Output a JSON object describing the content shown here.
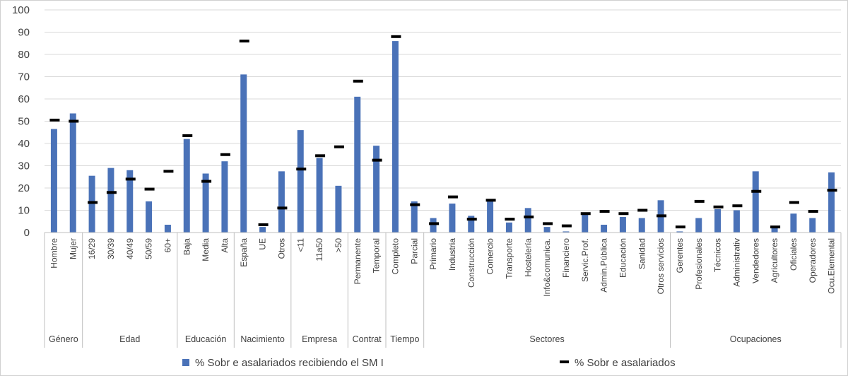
{
  "chart_data": {
    "type": "bar",
    "ylim": [
      0,
      100
    ],
    "yticks": [
      0,
      10,
      20,
      30,
      40,
      50,
      60,
      70,
      80,
      90,
      100
    ],
    "grid": true,
    "legend_position": "bottom",
    "colors": {
      "bar": "#4a72b8",
      "marker": "#000000",
      "grid": "#d9d9d9",
      "axis": "#bfbfbf"
    },
    "categories": [
      "Hombre",
      "Mujer",
      "16/29",
      "30/39",
      "40/49",
      "50/59",
      "60+",
      "Baja",
      "Media",
      "Alta",
      "España",
      "UE",
      "Otros",
      "<11",
      "11a50",
      ">50",
      "Permanente",
      "Temporal",
      "Completo",
      "Parcial",
      "Primario",
      "Industria",
      "Construcción",
      "Comercio",
      "Transporte",
      "Hostelería",
      "Info&comunica.",
      "Financiero",
      "Servic.Prof.",
      "Admin.Pública",
      "Educación",
      "Sanidad",
      "Otros servicios",
      "Gerentes",
      "Profesionales",
      "Técnicos",
      "Administrativ",
      "Vendedores",
      "Agricultores",
      "Oficiales",
      "Operadores",
      "Ocu.Elemental"
    ],
    "groups": [
      {
        "label": "Género",
        "count": 2
      },
      {
        "label": "Edad",
        "count": 5
      },
      {
        "label": "Educación",
        "count": 3
      },
      {
        "label": "Nacimiento",
        "count": 3
      },
      {
        "label": "Empresa",
        "count": 3
      },
      {
        "label": "Contrat",
        "count": 2
      },
      {
        "label": "Tiempo",
        "count": 2
      },
      {
        "label": "Sectores",
        "count": 13
      },
      {
        "label": "Ocupaciones",
        "count": 9
      }
    ],
    "series": [
      {
        "name": "% Sobr e asalariados recibiendo el SM I",
        "type": "bar",
        "values": [
          46.5,
          53.5,
          25.5,
          29,
          28,
          14,
          3.5,
          42,
          26.5,
          32,
          71,
          2.5,
          27.5,
          46,
          33.5,
          21,
          61,
          39,
          86,
          14,
          6.5,
          13,
          7.5,
          14.5,
          4.5,
          11,
          2.5,
          0.5,
          9,
          3.5,
          7,
          6.5,
          14.5,
          0.5,
          6.5,
          10.5,
          10,
          27.5,
          2,
          8.5,
          6.5,
          27
        ]
      },
      {
        "name": "% Sobr e asalariados",
        "type": "marker",
        "values": [
          50.5,
          50,
          13.5,
          18,
          24,
          19.5,
          27.5,
          43.5,
          23,
          35,
          86,
          3.5,
          11,
          28.5,
          34.5,
          38.5,
          68,
          32.5,
          88,
          12.5,
          4,
          16,
          6,
          14.5,
          6,
          7,
          4,
          3,
          8.5,
          9.5,
          8.5,
          10,
          7.5,
          2.5,
          14,
          11.5,
          12,
          18.5,
          2.5,
          13.5,
          9.5,
          19
        ]
      }
    ]
  }
}
